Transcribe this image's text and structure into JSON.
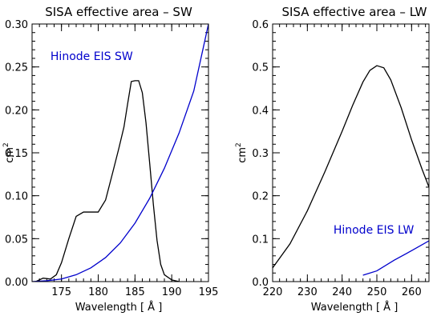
{
  "chart_data": [
    {
      "type": "line",
      "title": "SISA effective area – SW",
      "xlabel": "Wavelength [ Å ]",
      "ylabel_base": "cm",
      "ylabel_exp": "2",
      "xlim": [
        171,
        195
      ],
      "ylim": [
        0,
        0.3
      ],
      "xticks": [
        175,
        180,
        185,
        190,
        195
      ],
      "xminor_step": 1,
      "yticks": [
        0.0,
        0.05,
        0.1,
        0.15,
        0.2,
        0.25,
        0.3
      ],
      "ytick_labels": [
        "0.00",
        "0.05",
        "0.10",
        "0.15",
        "0.20",
        "0.25",
        "0.30"
      ],
      "yminor_step": 0.01,
      "annotation": {
        "text": "Hinode EIS SW",
        "x": 173.5,
        "y": 0.258,
        "color": "#0000cc"
      },
      "series": [
        {
          "color": "#000000",
          "x": [
            171.5,
            172.5,
            173.5,
            174.3,
            175.0,
            176.0,
            177.0,
            178.0,
            179.0,
            180.0,
            181.0,
            182.0,
            182.8,
            183.5,
            184.0,
            184.5,
            185.0,
            185.5,
            186.0,
            186.5,
            187.0,
            187.5,
            188.0,
            188.5,
            189.0,
            190.0,
            191.0
          ],
          "y": [
            0.0,
            0.004,
            0.003,
            0.008,
            0.022,
            0.05,
            0.076,
            0.081,
            0.081,
            0.081,
            0.095,
            0.128,
            0.155,
            0.18,
            0.207,
            0.233,
            0.234,
            0.234,
            0.22,
            0.185,
            0.138,
            0.09,
            0.048,
            0.02,
            0.008,
            0.002,
            0.0
          ]
        },
        {
          "color": "#0000cc",
          "x": [
            171,
            173,
            175,
            177,
            179,
            181,
            183,
            185,
            187,
            189,
            191,
            193,
            195
          ],
          "y": [
            0.0,
            0.001,
            0.003,
            0.008,
            0.016,
            0.028,
            0.045,
            0.068,
            0.097,
            0.132,
            0.173,
            0.222,
            0.3
          ]
        }
      ]
    },
    {
      "type": "line",
      "title": "SISA effective area – LW",
      "xlabel": "Wavelength [ Å ]",
      "ylabel_base": "cm",
      "ylabel_exp": "2",
      "xlim": [
        220,
        265
      ],
      "ylim": [
        0,
        0.6
      ],
      "xticks": [
        220,
        230,
        240,
        250,
        260
      ],
      "xminor_step": 2,
      "yticks": [
        0.0,
        0.1,
        0.2,
        0.3,
        0.4,
        0.5,
        0.6
      ],
      "ytick_labels": [
        "0.0",
        "0.1",
        "0.2",
        "0.3",
        "0.4",
        "0.5",
        "0.6"
      ],
      "yminor_step": 0.02,
      "annotation": {
        "text": "Hinode EIS LW",
        "x": 237.5,
        "y": 0.112,
        "color": "#0000cc"
      },
      "series": [
        {
          "color": "#000000",
          "x": [
            220,
            225,
            230,
            235,
            240,
            243,
            246,
            248,
            250,
            252,
            254,
            257,
            260,
            263,
            265
          ],
          "y": [
            0.032,
            0.088,
            0.165,
            0.255,
            0.35,
            0.41,
            0.465,
            0.492,
            0.503,
            0.498,
            0.47,
            0.405,
            0.33,
            0.262,
            0.22
          ]
        },
        {
          "color": "#0000cc",
          "x": [
            246,
            250,
            255,
            260,
            265
          ],
          "y": [
            0.015,
            0.025,
            0.05,
            0.072,
            0.095
          ]
        }
      ]
    }
  ]
}
